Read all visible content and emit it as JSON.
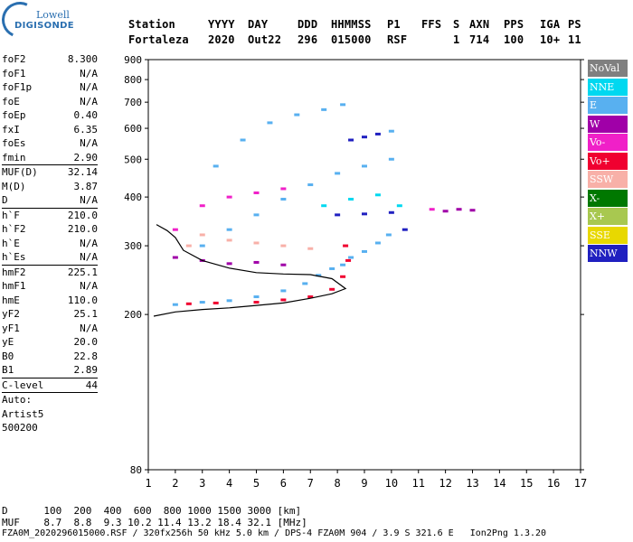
{
  "logo": {
    "line1": "Lowell",
    "line2": "DIGISONDE"
  },
  "header": {
    "labels": [
      "Station",
      "YYYY",
      "DAY",
      "DDD",
      "HHMMSS",
      "P1",
      "FFS",
      "S",
      "AXN",
      "PPS",
      "IGA",
      "PS"
    ],
    "values": [
      "Fortaleza",
      "2020",
      "Out22",
      "296",
      "015000",
      "RSF",
      "1",
      "714",
      "100",
      "10+",
      "11"
    ]
  },
  "params": [
    {
      "k": "foF2",
      "v": "8.300"
    },
    {
      "k": "foF1",
      "v": "N/A"
    },
    {
      "k": "foF1p",
      "v": "N/A"
    },
    {
      "k": "foE",
      "v": "N/A"
    },
    {
      "k": "foEp",
      "v": "0.40"
    },
    {
      "k": "fxI",
      "v": "6.35"
    },
    {
      "k": "foEs",
      "v": "N/A"
    },
    {
      "k": "fmin",
      "v": "2.90"
    },
    {
      "sep": true
    },
    {
      "k": "MUF(D)",
      "v": "32.14"
    },
    {
      "k": "M(D)",
      "v": "3.87"
    },
    {
      "k": "D",
      "v": "N/A"
    },
    {
      "sep": true
    },
    {
      "k": "h`F",
      "v": "210.0"
    },
    {
      "k": "h`F2",
      "v": "210.0"
    },
    {
      "k": "h`E",
      "v": "N/A"
    },
    {
      "k": "h`Es",
      "v": "N/A"
    },
    {
      "sep": true
    },
    {
      "k": "hmF2",
      "v": "225.1"
    },
    {
      "k": "hmF1",
      "v": "N/A"
    },
    {
      "k": "hmE",
      "v": "110.0"
    },
    {
      "k": "yF2",
      "v": "25.1"
    },
    {
      "k": "yF1",
      "v": "N/A"
    },
    {
      "k": "yE",
      "v": "20.0"
    },
    {
      "k": "B0",
      "v": "22.8"
    },
    {
      "k": "B1",
      "v": "2.89"
    },
    {
      "sep": true
    },
    {
      "k": "C-level",
      "v": "44"
    },
    {
      "sep": true
    },
    {
      "k": "Auto:",
      "v": ""
    },
    {
      "k": "Artist5",
      "v": ""
    },
    {
      "k": "500200",
      "v": ""
    }
  ],
  "legend": [
    {
      "label": "NoVal",
      "color": "#808080"
    },
    {
      "label": "NNE",
      "color": "#00d8f0"
    },
    {
      "label": "E",
      "color": "#58b0f0"
    },
    {
      "label": "W",
      "color": "#a000a8"
    },
    {
      "label": "Vo-",
      "color": "#f020c8"
    },
    {
      "label": "Vo+",
      "color": "#f00030"
    },
    {
      "label": "SSW",
      "color": "#f8b0a8"
    },
    {
      "label": "X-",
      "color": "#007800"
    },
    {
      "label": "X+",
      "color": "#a8c850"
    },
    {
      "label": "SSE",
      "color": "#e8d800"
    },
    {
      "label": "NNW",
      "color": "#2020c0"
    }
  ],
  "chart_data": {
    "type": "scatter",
    "title": "",
    "xlabel": "",
    "ylabel": "",
    "xlim": [
      1,
      17
    ],
    "ylim": [
      80,
      900
    ],
    "x_ticks": [
      "1",
      "2",
      "3",
      "4",
      "5",
      "6",
      "7",
      "8",
      "9",
      "10",
      "11",
      "12",
      "13",
      "14",
      "15",
      "16",
      "17"
    ],
    "y_ticks": [
      "80",
      "200",
      "300",
      "400",
      "500",
      "600",
      "700",
      "800",
      "900"
    ],
    "scale_y": "log",
    "series": [
      {
        "name": "E",
        "points": [
          [
            2.0,
            212
          ],
          [
            3.0,
            215
          ],
          [
            4.0,
            217
          ],
          [
            5.0,
            222
          ],
          [
            6.0,
            230
          ],
          [
            6.8,
            240
          ],
          [
            7.3,
            252
          ],
          [
            7.8,
            262
          ],
          [
            8.2,
            268
          ],
          [
            8.5,
            280
          ],
          [
            9.0,
            290
          ],
          [
            9.5,
            305
          ],
          [
            9.9,
            320
          ],
          [
            3.0,
            300
          ],
          [
            4.0,
            330
          ],
          [
            5.0,
            360
          ],
          [
            6.0,
            395
          ],
          [
            7.0,
            430
          ],
          [
            8.0,
            460
          ],
          [
            9.0,
            480
          ],
          [
            10.0,
            500
          ],
          [
            3.5,
            480
          ],
          [
            4.5,
            560
          ],
          [
            5.5,
            620
          ],
          [
            6.5,
            650
          ],
          [
            7.5,
            670
          ],
          [
            8.2,
            690
          ],
          [
            10.0,
            590
          ]
        ]
      },
      {
        "name": "Vo+",
        "points": [
          [
            2.5,
            213
          ],
          [
            3.5,
            214
          ],
          [
            5.0,
            215
          ],
          [
            6.0,
            218
          ],
          [
            7.0,
            222
          ],
          [
            7.8,
            232
          ],
          [
            8.2,
            250
          ],
          [
            8.4,
            275
          ],
          [
            8.3,
            300
          ]
        ]
      },
      {
        "name": "W",
        "points": [
          [
            2.0,
            280
          ],
          [
            3.0,
            275
          ],
          [
            4.0,
            270
          ],
          [
            5.0,
            272
          ],
          [
            6.0,
            268
          ],
          [
            12.0,
            368
          ],
          [
            12.5,
            372
          ],
          [
            13.0,
            370
          ]
        ]
      },
      {
        "name": "Vo-",
        "points": [
          [
            2.0,
            330
          ],
          [
            3.0,
            380
          ],
          [
            4.0,
            400
          ],
          [
            5.0,
            410
          ],
          [
            6.0,
            420
          ],
          [
            11.5,
            372
          ]
        ]
      },
      {
        "name": "SSW",
        "points": [
          [
            2.5,
            300
          ],
          [
            3.0,
            320
          ],
          [
            4.0,
            310
          ],
          [
            5.0,
            305
          ],
          [
            6.0,
            300
          ],
          [
            7.0,
            295
          ]
        ]
      },
      {
        "name": "NNW",
        "points": [
          [
            8.0,
            360
          ],
          [
            9.0,
            362
          ],
          [
            10.0,
            365
          ],
          [
            10.5,
            330
          ],
          [
            8.5,
            560
          ],
          [
            9.0,
            570
          ],
          [
            9.5,
            580
          ]
        ]
      },
      {
        "name": "NNE",
        "points": [
          [
            7.5,
            380
          ],
          [
            8.5,
            395
          ],
          [
            9.5,
            405
          ],
          [
            10.3,
            380
          ]
        ]
      }
    ],
    "traces": [
      {
        "name": "trace",
        "points": [
          [
            1.2,
            198
          ],
          [
            2.0,
            203
          ],
          [
            3.0,
            206
          ],
          [
            4.0,
            208
          ],
          [
            5.0,
            211
          ],
          [
            6.0,
            214
          ],
          [
            7.0,
            220
          ],
          [
            7.8,
            226
          ],
          [
            8.3,
            233
          ],
          [
            7.8,
            247
          ],
          [
            7.0,
            253
          ],
          [
            6.0,
            254
          ],
          [
            5.0,
            256
          ],
          [
            4.0,
            263
          ],
          [
            3.0,
            275
          ],
          [
            2.3,
            292
          ],
          [
            2.0,
            315
          ],
          [
            1.7,
            328
          ],
          [
            1.3,
            340
          ]
        ]
      }
    ]
  },
  "footer": {
    "d_line": "D      100  200  400  600  800 1000 1500 3000 [km]",
    "muf_line": "MUF    8.7  8.8  9.3 10.2 11.4 13.2 18.4 32.1 [MHz]",
    "file_line": "FZA0M_2020296015000.RSF / 320fx256h 50 kHz 5.0 km / DPS-4 FZA0M 904 / 3.9 S 321.6 E   Ion2Png 1.3.20"
  }
}
